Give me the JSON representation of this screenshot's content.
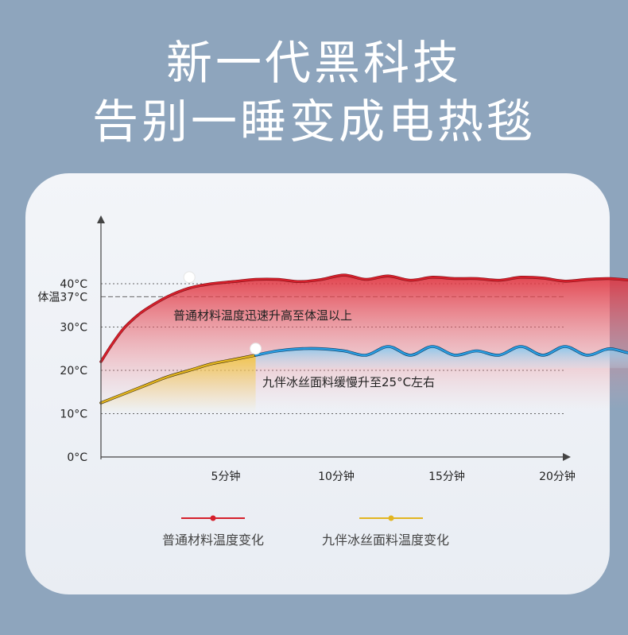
{
  "headline": {
    "line1": "新一代黑科技",
    "line2": "告别一睡变成电热毯"
  },
  "colors": {
    "background": "#8ea5bd",
    "card": "#eef1f6",
    "red": "#d51f2b",
    "yellow": "#e2b521",
    "blue": "#2a9de0",
    "grid": "#555555"
  },
  "chart_data": {
    "type": "line",
    "x_ticks": [
      "5分钟",
      "10分钟",
      "15分钟",
      "20分钟"
    ],
    "x_tick_values": [
      5,
      10,
      15,
      20
    ],
    "y_ticks": [
      {
        "label": "0°C",
        "value": 0
      },
      {
        "label": "10°C",
        "value": 10
      },
      {
        "label": "20°C",
        "value": 20
      },
      {
        "label": "30°C",
        "value": 30
      },
      {
        "label": "体温37°C",
        "value": 37
      },
      {
        "label": "40°C",
        "value": 40
      }
    ],
    "xlim": [
      0,
      25
    ],
    "ylim": [
      0,
      50
    ],
    "grid": true,
    "legend_position": "bottom",
    "series": [
      {
        "name": "普通材料温度变化",
        "color": "#d51f2b",
        "x": [
          0,
          0.5,
          1,
          1.5,
          2,
          3,
          4,
          5,
          6,
          7,
          8,
          9,
          10,
          11,
          12,
          13,
          14,
          15,
          16,
          17,
          18,
          19,
          20,
          21,
          22,
          23,
          24,
          25
        ],
        "y": [
          22,
          26,
          29.5,
          32,
          34,
          37,
          39,
          40,
          40.5,
          41,
          41,
          40.5,
          41,
          42,
          41,
          41.8,
          40.8,
          41.5,
          41.2,
          41.2,
          40.8,
          41.5,
          41.3,
          40.6,
          41,
          41.2,
          40.8,
          40.5
        ]
      },
      {
        "name": "九伴冰丝面料温度变化",
        "color": "#e2b521",
        "x": [
          0,
          1,
          2,
          3,
          4,
          5,
          6,
          7,
          8,
          9,
          10,
          11,
          12,
          13,
          14,
          15,
          16,
          17,
          18,
          19,
          20,
          21,
          22,
          23,
          24,
          25
        ],
        "y": [
          12.5,
          14.5,
          16.5,
          18.5,
          20,
          21.5,
          22.5,
          23.5,
          24.5,
          25,
          25,
          24.5,
          23.5,
          25.5,
          23.5,
          25.5,
          23.5,
          24.5,
          23.5,
          25.5,
          23.5,
          25.5,
          23.5,
          25,
          24,
          25
        ]
      }
    ],
    "annotations": {
      "red": "普通材料温度迅速升高至体温以上",
      "blue": "九伴冰丝面料缓慢升至25°C左右"
    }
  }
}
